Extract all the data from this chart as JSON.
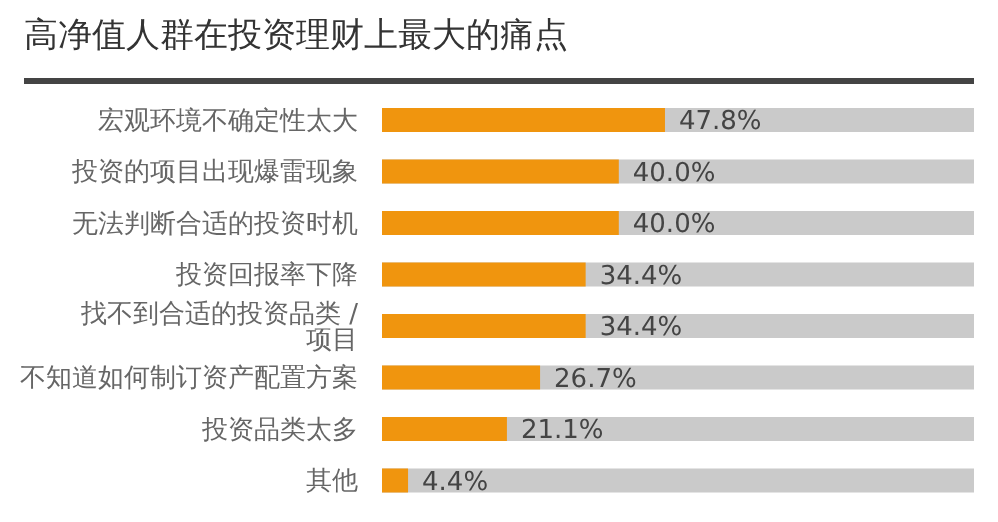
{
  "chart_data": {
    "type": "bar",
    "orientation": "horizontal",
    "title": "高净值人群在投资理财上最大的痛点",
    "categories": [
      "宏观环境不确定性太大",
      "投资的项目出现爆雷现象",
      "无法判断合适的投资时机",
      "投资回报率下降",
      "找不到合适的投资品类 / 项目",
      "不知道如何制订资产配置方案",
      "投资品类太多",
      "其他"
    ],
    "values": [
      47.8,
      40.0,
      40.0,
      34.4,
      34.4,
      26.7,
      21.1,
      4.4
    ],
    "value_labels": [
      "47.8%",
      "40.0%",
      "40.0%",
      "34.4%",
      "34.4%",
      "26.7%",
      "21.1%",
      "4.4%"
    ],
    "color": "#f0950e",
    "xlim": [
      0,
      100
    ]
  }
}
